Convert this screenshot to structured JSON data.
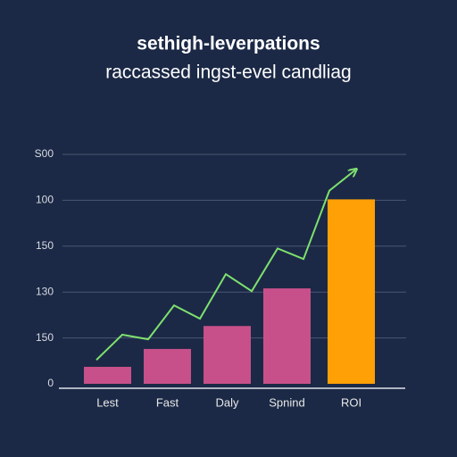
{
  "chart_data": {
    "type": "bar",
    "title": "sethigh-leverpations",
    "subtitle": "raccassed ingst-evel candliag",
    "categories": [
      "Lest",
      "Fast",
      "Daly",
      "Spnind",
      "ROI"
    ],
    "series": [
      {
        "values": [
          37,
          76,
          126,
          208,
          402
        ],
        "colors": [
          "#c8508a",
          "#c8508a",
          "#c8508a",
          "#c8508a",
          "#ffa006"
        ]
      }
    ],
    "trend": {
      "type": "line",
      "color": "#7ee06e",
      "values": [
        52,
        107,
        97,
        171,
        142,
        239,
        202,
        295,
        272,
        421,
        466
      ]
    },
    "ylim": [
      0,
      500
    ],
    "yticks": [
      0,
      {
        "value": 100,
        "label": "150"
      },
      {
        "value": 200,
        "label": "130"
      },
      {
        "value": 300,
        "label": "150"
      },
      {
        "value": 400,
        "label": "100"
      },
      {
        "value": 500,
        "label": "S00"
      }
    ],
    "grid": true
  }
}
